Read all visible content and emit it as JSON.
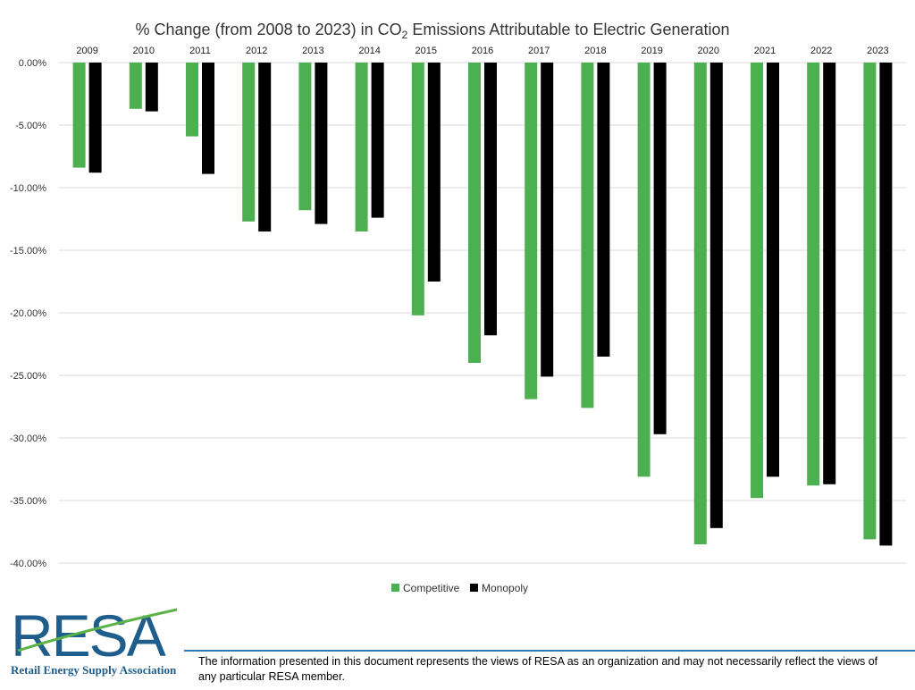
{
  "colors": {
    "competitive": "#4caf50",
    "monopoly": "#000000",
    "grid": "#d9d9d9",
    "brand_blue": "#1f5d8c",
    "brand_green": "#5bb347"
  },
  "chart_data": {
    "type": "bar",
    "title_prefix": "% Change (from 2008 to 2023) in CO",
    "title_subscript": "2",
    "title_suffix": " Emissions Attributable to Electric Generation",
    "categories": [
      "2009",
      "2010",
      "2011",
      "2012",
      "2013",
      "2014",
      "2015",
      "2016",
      "2017",
      "2018",
      "2019",
      "2020",
      "2021",
      "2022",
      "2023"
    ],
    "series": [
      {
        "name": "Competitive",
        "color_key": "competitive",
        "values": [
          -8.4,
          -3.7,
          -5.9,
          -12.7,
          -11.8,
          -13.5,
          -20.2,
          -24.0,
          -26.9,
          -27.6,
          -33.1,
          -38.5,
          -34.8,
          -33.8,
          -38.1
        ]
      },
      {
        "name": "Monopoly",
        "color_key": "monopoly",
        "values": [
          -8.8,
          -3.9,
          -8.9,
          -13.5,
          -12.9,
          -12.4,
          -17.5,
          -21.8,
          -25.1,
          -23.5,
          -29.7,
          -37.2,
          -33.1,
          -33.7,
          -38.6
        ]
      }
    ],
    "y_ticks": [
      0,
      -5,
      -10,
      -15,
      -20,
      -25,
      -30,
      -35,
      -40
    ],
    "y_tick_labels": [
      "0.00%",
      "-5.00%",
      "-10.00%",
      "-15.00%",
      "-20.00%",
      "-25.00%",
      "-30.00%",
      "-35.00%",
      "-40.00%"
    ],
    "ylim": [
      -40,
      0
    ],
    "grid": true,
    "legend_position": "bottom-center",
    "xlabel": "",
    "ylabel": ""
  },
  "logo": {
    "name": "RESA",
    "tagline": "Retail Energy Supply Association"
  },
  "footer": {
    "disclaimer": "The information presented in this document represents the views of RESA as an organization and may not necessarily reflect the views of any particular RESA member."
  }
}
